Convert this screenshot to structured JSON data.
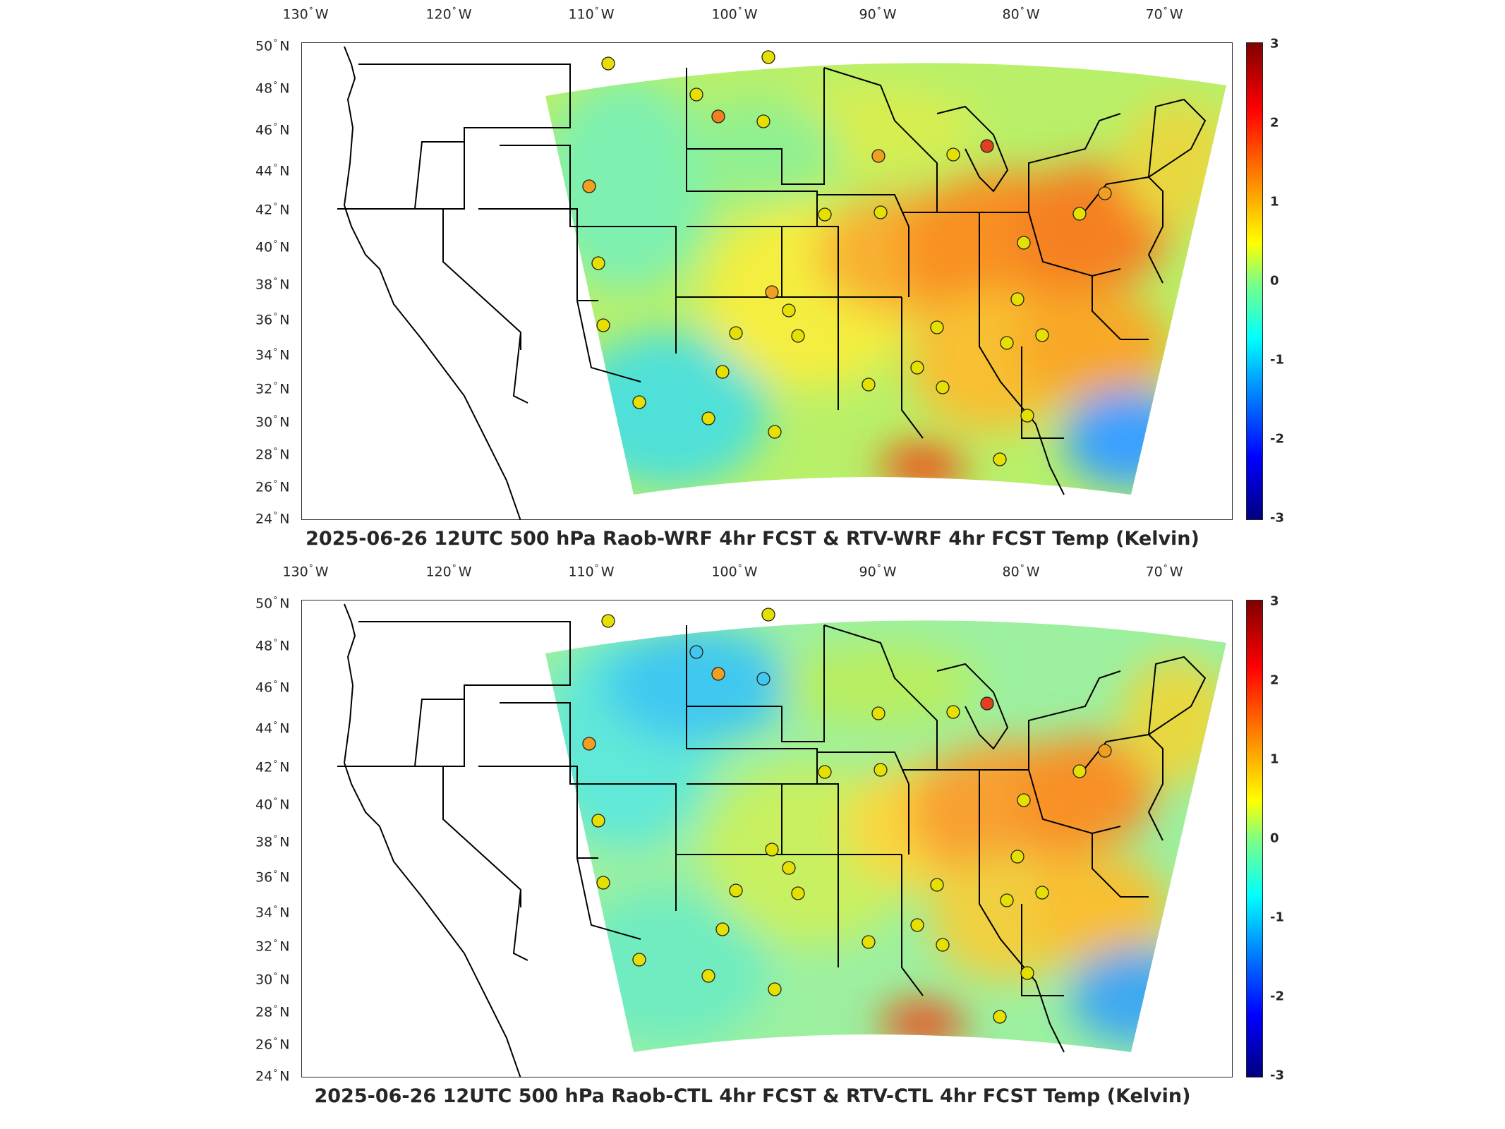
{
  "lon_ticks": [
    {
      "deg": "130",
      "hem": "W"
    },
    {
      "deg": "120",
      "hem": "W"
    },
    {
      "deg": "110",
      "hem": "W"
    },
    {
      "deg": "100",
      "hem": "W"
    },
    {
      "deg": "90",
      "hem": "W"
    },
    {
      "deg": "80",
      "hem": "W"
    },
    {
      "deg": "70",
      "hem": "W"
    }
  ],
  "lat_ticks": [
    {
      "deg": "50",
      "hem": "N"
    },
    {
      "deg": "48",
      "hem": "N"
    },
    {
      "deg": "46",
      "hem": "N"
    },
    {
      "deg": "44",
      "hem": "N"
    },
    {
      "deg": "42",
      "hem": "N"
    },
    {
      "deg": "40",
      "hem": "N"
    },
    {
      "deg": "38",
      "hem": "N"
    },
    {
      "deg": "36",
      "hem": "N"
    },
    {
      "deg": "34",
      "hem": "N"
    },
    {
      "deg": "32",
      "hem": "N"
    },
    {
      "deg": "30",
      "hem": "N"
    },
    {
      "deg": "28",
      "hem": "N"
    },
    {
      "deg": "26",
      "hem": "N"
    },
    {
      "deg": "24",
      "hem": "N"
    }
  ],
  "colorbar": {
    "ticks": [
      "3",
      "2",
      "1",
      "0",
      "-1",
      "-2",
      "-3"
    ],
    "colors": {
      "max": "#800000",
      "mid": "#80ff80",
      "min": "#000080"
    }
  },
  "panels": [
    {
      "title": "2025-06-26 12UTC 500 hPa Raob-WRF 4hr FCST & RTV-WRF 4hr FCST Temp (Kelvin)"
    },
    {
      "title": "2025-06-26 12UTC 500 hPa Raob-CTL 4hr FCST & RTV-CTL 4hr FCST Temp (Kelvin)"
    }
  ]
}
